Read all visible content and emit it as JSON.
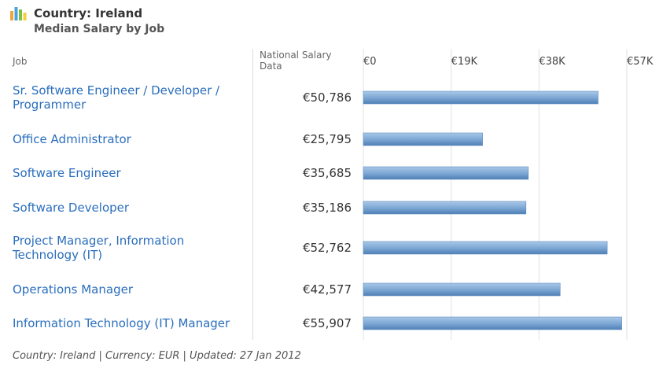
{
  "header": {
    "title": "Country: Ireland",
    "subtitle": "Median Salary by Job",
    "logo_icon": "bar-chart-icon"
  },
  "columns": {
    "job": "Job",
    "national": "National Salary Data"
  },
  "chart_data": {
    "type": "bar",
    "orientation": "horizontal",
    "categories": [
      "Sr. Software Engineer / Developer / Programmer",
      "Office Administrator",
      "Software Engineer",
      "Software Developer",
      "Project Manager, Information Technology (IT)",
      "Operations Manager",
      "Information Technology (IT) Manager"
    ],
    "values": [
      50786,
      25795,
      35685,
      35186,
      52762,
      42577,
      55907
    ],
    "value_labels": [
      "€50,786",
      "€25,795",
      "€35,685",
      "€35,186",
      "€52,762",
      "€42,577",
      "€55,907"
    ],
    "xlim": [
      0,
      57000
    ],
    "ticks": [
      0,
      19000,
      38000,
      57000
    ],
    "tick_labels": [
      "€0",
      "€19K",
      "€38K",
      "€57K"
    ],
    "grid": true,
    "bar_color": "#7aa5d2"
  },
  "footer": {
    "text": "Country: Ireland | Currency: EUR | Updated: 27 Jan 2012"
  }
}
